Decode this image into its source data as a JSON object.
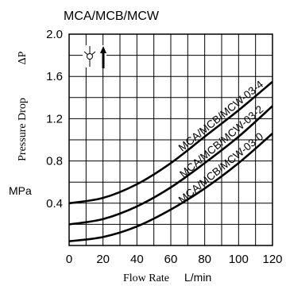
{
  "chart_data": {
    "type": "line",
    "title": "MCA/MCB/MCW",
    "xlabel": "Flow Rate",
    "xunit": "L/min",
    "ylabel": "Pressure Drop",
    "ysymbol": "ΔP",
    "yunit": "MPa",
    "xlim": [
      0,
      120
    ],
    "ylim": [
      0,
      2.0
    ],
    "xticks": [
      "0",
      "20",
      "40",
      "60",
      "80",
      "100",
      "120"
    ],
    "yticks": [
      "0.4",
      "0.8",
      "1.2",
      "1.6",
      "2.0"
    ],
    "grid": true,
    "x_minor_step": 10,
    "y_minor_step": 0.2,
    "symbol": "check-valve-symbol",
    "series": [
      {
        "name": "MCA/MCB/MCW-03-4",
        "x": [
          0,
          20,
          40,
          60,
          80,
          100,
          120
        ],
        "y": [
          0.4,
          0.45,
          0.58,
          0.78,
          1.03,
          1.28,
          1.55
        ]
      },
      {
        "name": "MCA/MCB/MCW-03-2",
        "x": [
          0,
          20,
          40,
          60,
          80,
          100,
          120
        ],
        "y": [
          0.2,
          0.25,
          0.37,
          0.55,
          0.78,
          1.03,
          1.32
        ]
      },
      {
        "name": "MCA/MCB/MCW-03-0",
        "x": [
          0,
          20,
          40,
          60,
          80,
          100,
          120
        ],
        "y": [
          0.04,
          0.08,
          0.18,
          0.34,
          0.54,
          0.78,
          1.06
        ]
      }
    ]
  }
}
